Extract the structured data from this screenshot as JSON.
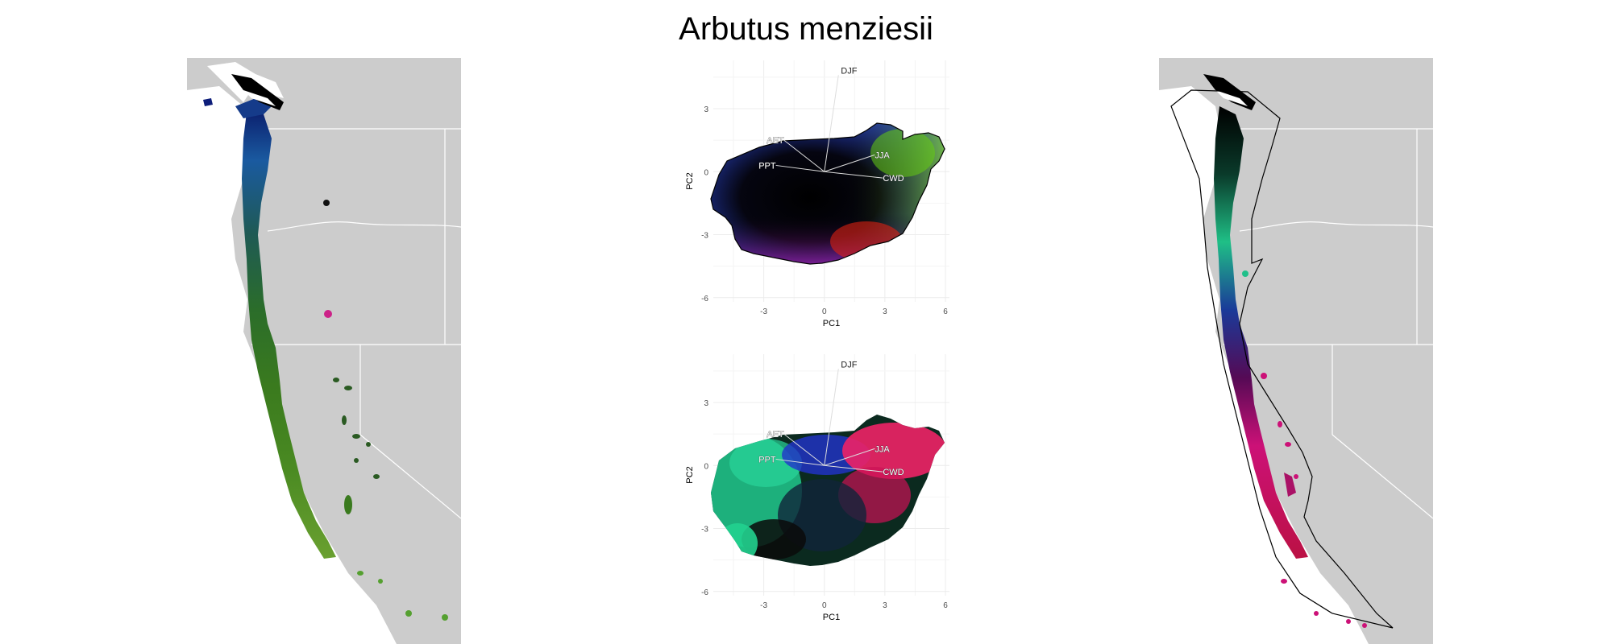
{
  "title": "Arbutus menziesii",
  "colors": {
    "map_background": "#cccccc",
    "state_border": "#ffffff",
    "grid": "#ececec",
    "text": "#333333",
    "hull": "#000000"
  },
  "left_map": {
    "description_color_scheme": "rgb PCA"
  },
  "right_map": {
    "hull": true
  },
  "chart_data": [
    {
      "type": "scatter",
      "panel": "top",
      "xlabel": "PC1",
      "ylabel": "PC2",
      "xlim": [
        -5.5,
        6.2
      ],
      "ylim": [
        -6.2,
        5.3
      ],
      "xticks": [
        -3,
        0,
        3,
        6
      ],
      "yticks": [
        -6,
        -3,
        0,
        3
      ],
      "xtick_labels": [
        "-3",
        "0",
        "3",
        "6"
      ],
      "ytick_labels": [
        "-6",
        "-3",
        "0",
        "3"
      ],
      "grid": true,
      "hull": true,
      "vectors": [
        {
          "label": "DJF",
          "x": 0.7,
          "y": 4.6
        },
        {
          "label": "AET",
          "x": -2.0,
          "y": 1.5
        },
        {
          "label": "JJA",
          "x": 2.5,
          "y": 0.8
        },
        {
          "label": "PPT",
          "x": -2.4,
          "y": 0.3
        },
        {
          "label": "CWD",
          "x": 2.9,
          "y": -0.3
        }
      ]
    },
    {
      "type": "scatter",
      "panel": "bottom",
      "xlabel": "PC1",
      "ylabel": "PC2",
      "xlim": [
        -5.5,
        6.2
      ],
      "ylim": [
        -6.2,
        5.3
      ],
      "xticks": [
        -3,
        0,
        3,
        6
      ],
      "yticks": [
        -6,
        -3,
        0,
        3
      ],
      "xtick_labels": [
        "-3",
        "0",
        "3",
        "6"
      ],
      "ytick_labels": [
        "-6",
        "-3",
        "0",
        "3"
      ],
      "grid": true,
      "hull": false,
      "vectors": [
        {
          "label": "DJF",
          "x": 0.7,
          "y": 4.6
        },
        {
          "label": "AET",
          "x": -2.0,
          "y": 1.5
        },
        {
          "label": "JJA",
          "x": 2.5,
          "y": 0.8
        },
        {
          "label": "PPT",
          "x": -2.4,
          "y": 0.3
        },
        {
          "label": "CWD",
          "x": 2.9,
          "y": -0.3
        }
      ]
    }
  ]
}
